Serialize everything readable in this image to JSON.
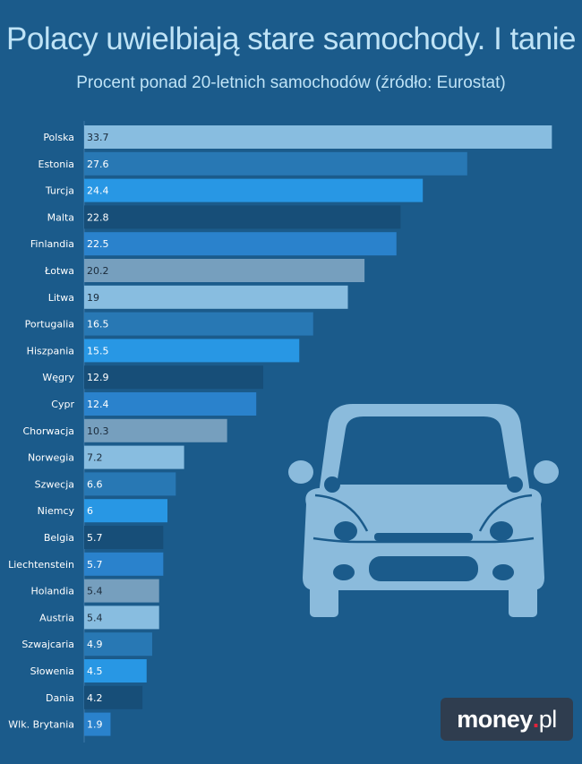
{
  "chart_data": {
    "type": "bar",
    "orientation": "horizontal",
    "title": "Polacy uwielbiają stare samochody. I tanie",
    "subtitle": "Procent ponad 20-letnich samochodów (źródło: Eurostat)",
    "xlabel": "",
    "ylabel": "",
    "xlim": [
      0,
      34
    ],
    "grid": false,
    "categories": [
      "Polska",
      "Estonia",
      "Turcja",
      "Malta",
      "Finlandia",
      "Łotwa",
      "Litwa",
      "Portugalia",
      "Hiszpania",
      "Węgry",
      "Cypr",
      "Chorwacja",
      "Norwegia",
      "Szwecja",
      "Niemcy",
      "Belgia",
      "Liechtenstein",
      "Holandia",
      "Austria",
      "Szwajcaria",
      "Słowenia",
      "Dania",
      "Wlk. Brytania"
    ],
    "values": [
      33.7,
      27.6,
      24.4,
      22.8,
      22.5,
      20.2,
      19,
      16.5,
      15.5,
      12.9,
      12.4,
      10.3,
      7.2,
      6.6,
      6,
      5.7,
      5.7,
      5.4,
      5.4,
      4.9,
      4.5,
      4.2,
      1.9
    ],
    "value_labels": [
      "33.7",
      "27.6",
      "24.4",
      "22.8",
      "22.5",
      "20.2",
      "19",
      "16.5",
      "15.5",
      "12.9",
      "12.4",
      "10.3",
      "7.2",
      "6.6",
      "6",
      "5.7",
      "5.7",
      "5.4",
      "5.4",
      "4.9",
      "4.5",
      "4.2",
      "1.9"
    ],
    "bar_colors": [
      "#88bde0",
      "#2878b4",
      "#2897e4",
      "#174e78",
      "#2a82cc",
      "#769fbe"
    ],
    "value_label_colors": [
      "#1a2a3a",
      "#ffffff",
      "#ffffff",
      "#ffffff",
      "#ffffff",
      "#1a2a3a"
    ]
  },
  "colors": {
    "background": "#1b5b8b",
    "title": "#bfe3f6",
    "car": "#8bbbdc",
    "logo_bg": "#2f3d4f",
    "logo_dot": "#e2233b"
  },
  "illustration": {
    "icon": "car-front-icon"
  },
  "brand": {
    "name": "money",
    "dot": ".",
    "tld": "pl"
  }
}
